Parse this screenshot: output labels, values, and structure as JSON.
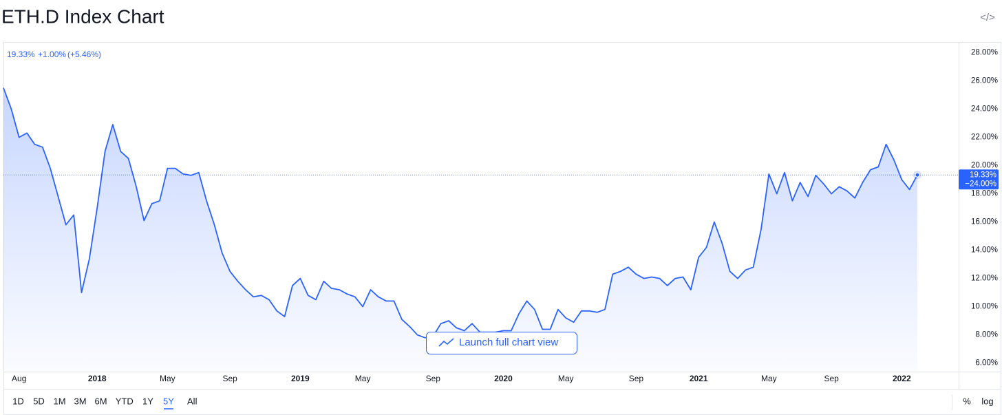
{
  "chart_data": {
    "type": "line",
    "title": "ETH.D Index Chart",
    "color": "#2962ff",
    "area": true,
    "grid": false,
    "categories": [
      null,
      null,
      "Aug",
      null,
      null,
      null,
      null,
      null,
      null,
      null,
      null,
      null,
      "2018",
      null,
      null,
      null,
      null,
      null,
      null,
      null,
      null,
      "May",
      null,
      null,
      null,
      null,
      null,
      null,
      null,
      "Sep",
      null,
      null,
      null,
      null,
      null,
      null,
      null,
      null,
      "2019",
      null,
      null,
      null,
      null,
      null,
      null,
      null,
      "May",
      null,
      null,
      null,
      null,
      null,
      null,
      null,
      null,
      "Sep",
      null,
      null,
      null,
      null,
      null,
      null,
      null,
      null,
      "2020",
      null,
      null,
      null,
      null,
      null,
      null,
      null,
      "May",
      null,
      null,
      null,
      null,
      null,
      null,
      null,
      null,
      "Sep",
      null,
      null,
      null,
      null,
      null,
      null,
      null,
      "2021",
      null,
      null,
      null,
      null,
      null,
      null,
      null,
      null,
      "May",
      null,
      null,
      null,
      null,
      null,
      null,
      null,
      "Sep",
      null,
      null,
      null,
      null,
      null,
      null,
      null,
      null,
      "2022",
      null,
      null
    ],
    "values": [
      25.5,
      24.0,
      22.0,
      22.3,
      21.5,
      21.3,
      19.8,
      17.8,
      15.8,
      16.5,
      11.0,
      13.4,
      17.0,
      21.0,
      22.9,
      21.0,
      20.5,
      18.5,
      16.1,
      17.3,
      17.5,
      19.8,
      19.8,
      19.4,
      19.3,
      19.5,
      17.5,
      15.8,
      13.8,
      12.5,
      11.8,
      11.2,
      10.7,
      10.8,
      10.5,
      9.7,
      9.3,
      11.5,
      12.0,
      10.8,
      10.5,
      11.8,
      11.3,
      11.2,
      10.9,
      10.7,
      10.0,
      11.2,
      10.7,
      10.4,
      10.4,
      9.1,
      8.6,
      8.0,
      7.8,
      7.9,
      8.8,
      9.0,
      8.5,
      8.3,
      8.8,
      8.2,
      8.2,
      8.2,
      8.3,
      8.3,
      9.5,
      10.4,
      9.8,
      8.4,
      8.4,
      9.8,
      9.2,
      8.9,
      9.7,
      9.7,
      9.6,
      9.8,
      12.3,
      12.5,
      12.8,
      12.3,
      12.0,
      12.1,
      12.0,
      11.5,
      12.0,
      12.1,
      11.2,
      13.5,
      14.2,
      16.0,
      14.5,
      12.5,
      12.0,
      12.6,
      12.8,
      15.5,
      19.4,
      18.0,
      19.5,
      17.5,
      18.8,
      17.8,
      19.3,
      18.7,
      18.0,
      18.5,
      18.2,
      17.7,
      18.8,
      19.7,
      19.9,
      21.5,
      20.4,
      19.0,
      18.3,
      19.33
    ],
    "ylim": [
      5.4,
      28.7
    ],
    "yticks": [
      {
        "value": 6,
        "label": "6.00%"
      },
      {
        "value": 8,
        "label": "8.00%"
      },
      {
        "value": 10,
        "label": "10.00%"
      },
      {
        "value": 12,
        "label": "12.00%"
      },
      {
        "value": 14,
        "label": "14.00%"
      },
      {
        "value": 16,
        "label": "16.00%"
      },
      {
        "value": 18,
        "label": "18.00%"
      },
      {
        "value": 20,
        "label": "20.00%"
      },
      {
        "value": 22,
        "label": "22.00%"
      },
      {
        "value": 24,
        "label": "24.00%"
      },
      {
        "value": 26,
        "label": "26.00%"
      },
      {
        "value": 28,
        "label": "28.00%"
      }
    ],
    "last_label": "19.33%",
    "countdown_label": "−24.00%",
    "legend": {
      "price": "19.33%",
      "change": "+1.00%",
      "change_pct": "(+5.46%)"
    }
  },
  "ui": {
    "embed_icon": "</>",
    "button": "Launch full chart view",
    "ranges": [
      "1D",
      "5D",
      "1M",
      "3M",
      "6M",
      "YTD",
      "1Y",
      "5Y",
      "All"
    ],
    "selected_range": 7,
    "scale_buttons": [
      "%",
      "log"
    ]
  }
}
